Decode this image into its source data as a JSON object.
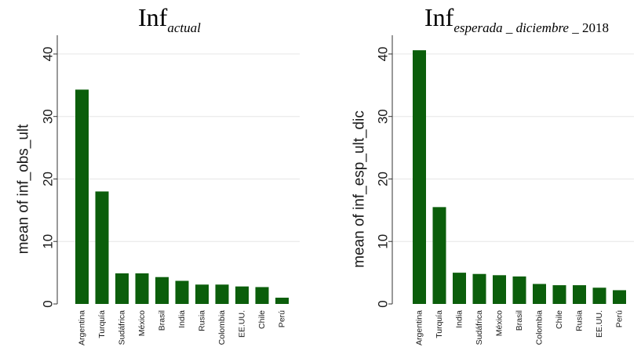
{
  "chart_data": [
    {
      "type": "bar",
      "title_main": "Inf",
      "title_sub": "actual",
      "title_tail": "",
      "ylabel": "mean of inf_obs_ult",
      "xlabel": "",
      "ylim": [
        0,
        43
      ],
      "yticks": [
        0,
        10,
        20,
        30,
        40
      ],
      "grid": true,
      "bar_color": "#0b5e0b",
      "categories": [
        "Argentina",
        "Turquía",
        "Sudáfrica",
        "México",
        "Brasil",
        "India",
        "Rusia",
        "Colombia",
        "EE.UU.",
        "Chile",
        "Perú"
      ],
      "values": [
        34.3,
        18.0,
        4.9,
        4.9,
        4.3,
        3.7,
        3.1,
        3.1,
        2.8,
        2.7,
        1.0
      ]
    },
    {
      "type": "bar",
      "title_main": "Inf",
      "title_sub": "esperada _ diciembre _",
      "title_tail": " 2018",
      "ylabel": "mean of inf_esp_ult_dic",
      "xlabel": "",
      "ylim": [
        0,
        43
      ],
      "yticks": [
        0,
        10,
        20,
        30,
        40
      ],
      "grid": true,
      "bar_color": "#0b5e0b",
      "categories": [
        "Argentina",
        "Turquía",
        "India",
        "Sudáfrica",
        "México",
        "Brasil",
        "Colombia",
        "Chile",
        "Rusia",
        "EE.UU.",
        "Perú"
      ],
      "values": [
        40.6,
        15.5,
        5.0,
        4.8,
        4.6,
        4.4,
        3.2,
        3.0,
        3.0,
        2.6,
        2.2
      ]
    }
  ]
}
